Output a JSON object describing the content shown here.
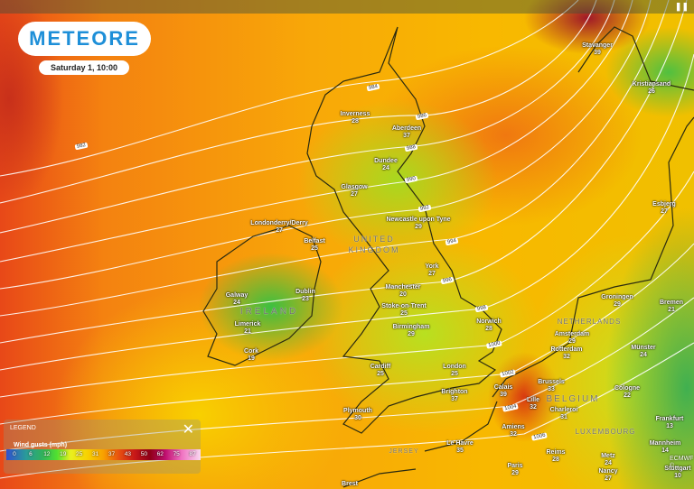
{
  "app": {
    "logo": "METEORE",
    "datetime": "Saturday 1, 10:00",
    "attribution": "ECMWF ©"
  },
  "legend": {
    "title": "LEGEND",
    "close_icon": "close-icon",
    "unit": "Wind gusts (mph)",
    "values": [
      "0",
      "6",
      "12",
      "19",
      "25",
      "31",
      "37",
      "43",
      "50",
      "62",
      "75",
      "87"
    ]
  },
  "isobars": [
    "982",
    "984",
    "986",
    "988",
    "990",
    "992",
    "994",
    "996",
    "998",
    "1000",
    "1002",
    "1004",
    "1006"
  ],
  "countries": [
    "IRELAND",
    "UNITED KINGDOM",
    "NETHERLANDS",
    "BELGIUM",
    "LUXEMBOURG",
    "JERSEY"
  ],
  "cities": [
    {
      "name": "Stavanger",
      "value": "39"
    },
    {
      "name": "Kristiansand",
      "value": "26"
    },
    {
      "name": "Inverness",
      "value": "28"
    },
    {
      "name": "Aberdeen",
      "value": "37"
    },
    {
      "name": "Dundee",
      "value": "24"
    },
    {
      "name": "Glasgow",
      "value": "27"
    },
    {
      "name": "Londonderry/Derry",
      "value": "27"
    },
    {
      "name": "Belfast",
      "value": "25"
    },
    {
      "name": "Newcastle upon Tyne",
      "value": "29"
    },
    {
      "name": "York",
      "value": "27"
    },
    {
      "name": "Galway",
      "value": "24"
    },
    {
      "name": "Dublin",
      "value": "23"
    },
    {
      "name": "Limerick",
      "value": "21"
    },
    {
      "name": "Cork",
      "value": "19"
    },
    {
      "name": "Manchester",
      "value": "20"
    },
    {
      "name": "Stoke-on-Trent",
      "value": "25"
    },
    {
      "name": "Birmingham",
      "value": "29"
    },
    {
      "name": "Norwich",
      "value": "28"
    },
    {
      "name": "Cardiff",
      "value": "25"
    },
    {
      "name": "London",
      "value": "25"
    },
    {
      "name": "Brighton",
      "value": "37"
    },
    {
      "name": "Plymouth",
      "value": "30"
    },
    {
      "name": "Calais",
      "value": "39"
    },
    {
      "name": "Le Havre",
      "value": "35"
    },
    {
      "name": "Paris",
      "value": "29"
    },
    {
      "name": "Brest",
      "value": ""
    },
    {
      "name": "Amiens",
      "value": "32"
    },
    {
      "name": "Lille",
      "value": "32"
    },
    {
      "name": "Brussels",
      "value": "33"
    },
    {
      "name": "Charleroi",
      "value": "31"
    },
    {
      "name": "Reims",
      "value": "28"
    },
    {
      "name": "Rotterdam",
      "value": "32"
    },
    {
      "name": "Amsterdam",
      "value": "29"
    },
    {
      "name": "Groningen",
      "value": "29"
    },
    {
      "name": "Bremen",
      "value": "21"
    },
    {
      "name": "Münster",
      "value": "24"
    },
    {
      "name": "Cologne",
      "value": "22"
    },
    {
      "name": "Frankfurt",
      "value": "13"
    },
    {
      "name": "Mannheim",
      "value": "14"
    },
    {
      "name": "Metz",
      "value": "24"
    },
    {
      "name": "Nancy",
      "value": "27"
    },
    {
      "name": "Stuttgart",
      "value": "10"
    },
    {
      "name": "Esbjerg",
      "value": "27"
    }
  ]
}
